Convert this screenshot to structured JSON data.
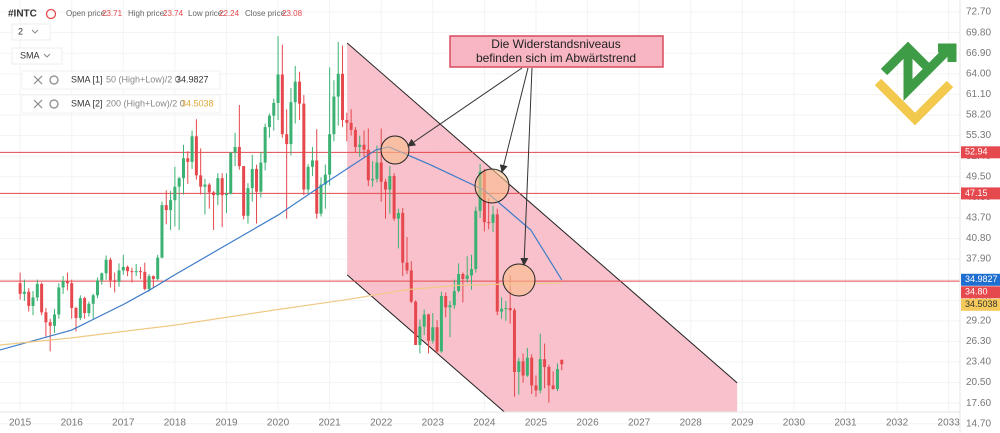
{
  "header": {
    "symbol": "#INTC",
    "open": {
      "label": "Open price:",
      "value": 23.71
    },
    "high": {
      "label": "High price:",
      "value": 23.74
    },
    "low": {
      "label": "Low price:",
      "value": 22.24
    },
    "close": {
      "label": "Close price:",
      "value": 23.08
    }
  },
  "toolbar": {
    "interval": "2",
    "indicator": "SMA"
  },
  "chart_data": {
    "type": "candlestick",
    "up_color": "#3bb273",
    "down_color": "#e5484d",
    "grid": true,
    "xlim": [
      2014.61,
      2033.22
    ],
    "xticks": [
      2015,
      2016,
      2017,
      2018,
      2019,
      2020,
      2021,
      2022,
      2023,
      2024,
      2025,
      2026,
      2027,
      2028,
      2029,
      2030,
      2031,
      2032,
      2033
    ],
    "ylim": [
      13.4,
      74.4
    ],
    "yticks": [
      {
        "value": 72.7,
        "label": "72.70"
      },
      {
        "value": 69.8,
        "label": "69.80"
      },
      {
        "value": 66.9,
        "label": "66.90"
      },
      {
        "value": 64,
        "label": "64.00"
      },
      {
        "value": 61.1,
        "label": "61.10"
      },
      {
        "value": 58.2,
        "label": "58.20"
      },
      {
        "value": 55.3,
        "label": "55.30"
      },
      {
        "value": 52.4,
        "label": "52.40"
      },
      {
        "value": 49.5,
        "label": "49.50"
      },
      {
        "value": 46.6,
        "label": "46.60"
      },
      {
        "value": 43.7,
        "label": "43.70"
      },
      {
        "value": 40.8,
        "label": "40.80"
      },
      {
        "value": 37.9,
        "label": "37.90"
      },
      {
        "value": 35,
        "label": "35.00"
      },
      {
        "value": 32.1,
        "label": "32.10"
      },
      {
        "value": 29.2,
        "label": "29.20"
      },
      {
        "value": 26.3,
        "label": "26.30"
      },
      {
        "value": 23.4,
        "label": "23.40"
      },
      {
        "value": 20.5,
        "label": "20.50"
      },
      {
        "value": 17.6,
        "label": "17.60"
      },
      {
        "value": 14.7,
        "label": "14.70"
      }
    ],
    "x": [
      2015,
      2015.083,
      2015.167,
      2015.25,
      2015.333,
      2015.417,
      2015.5,
      2015.583,
      2015.667,
      2015.75,
      2015.833,
      2015.917,
      2016,
      2016.083,
      2016.167,
      2016.25,
      2016.333,
      2016.417,
      2016.5,
      2016.583,
      2016.667,
      2016.75,
      2016.833,
      2016.917,
      2017,
      2017.083,
      2017.167,
      2017.25,
      2017.333,
      2017.417,
      2017.5,
      2017.583,
      2017.667,
      2017.75,
      2017.833,
      2017.917,
      2018,
      2018.083,
      2018.167,
      2018.25,
      2018.333,
      2018.417,
      2018.5,
      2018.583,
      2018.667,
      2018.75,
      2018.833,
      2018.917,
      2019,
      2019.083,
      2019.167,
      2019.25,
      2019.333,
      2019.417,
      2019.5,
      2019.583,
      2019.667,
      2019.75,
      2019.833,
      2019.917,
      2020,
      2020.083,
      2020.167,
      2020.25,
      2020.333,
      2020.417,
      2020.5,
      2020.583,
      2020.667,
      2020.75,
      2020.833,
      2020.917,
      2021,
      2021.083,
      2021.167,
      2021.25,
      2021.333,
      2021.417,
      2021.5,
      2021.583,
      2021.667,
      2021.75,
      2021.833,
      2021.917,
      2022,
      2022.083,
      2022.167,
      2022.25,
      2022.333,
      2022.417,
      2022.5,
      2022.583,
      2022.667,
      2022.75,
      2022.833,
      2022.917,
      2023,
      2023.083,
      2023.167,
      2023.25,
      2023.333,
      2023.417,
      2023.5,
      2023.583,
      2023.667,
      2023.75,
      2023.833,
      2023.917,
      2024,
      2024.083,
      2024.167,
      2024.25,
      2024.333,
      2024.417,
      2024.5,
      2024.583,
      2024.667,
      2024.75,
      2024.833,
      2024.917,
      2025,
      2025.083,
      2025.167,
      2025.25,
      2025.333,
      2025.417,
      2025.5
    ],
    "ohlc": [
      [
        34.5,
        36.0,
        32.2,
        33.0
      ],
      [
        33.0,
        35.0,
        32.0,
        33.3
      ],
      [
        33.3,
        33.8,
        30.5,
        31.3
      ],
      [
        31.3,
        33.4,
        30.0,
        32.5
      ],
      [
        32.5,
        35.0,
        32.0,
        34.4
      ],
      [
        34.4,
        34.6,
        30.0,
        30.4
      ],
      [
        30.4,
        31.0,
        27.0,
        29.0
      ],
      [
        29.0,
        29.5,
        24.9,
        28.5
      ],
      [
        28.5,
        30.9,
        27.5,
        30.1
      ],
      [
        30.1,
        34.5,
        29.5,
        33.9
      ],
      [
        33.9,
        35.5,
        33.0,
        34.8
      ],
      [
        34.8,
        36.0,
        33.5,
        34.5
      ],
      [
        34.5,
        35.0,
        29.5,
        31.0
      ],
      [
        31.0,
        31.2,
        27.7,
        29.6
      ],
      [
        29.6,
        32.8,
        29.3,
        32.4
      ],
      [
        32.4,
        32.6,
        29.5,
        30.3
      ],
      [
        30.3,
        31.9,
        29.8,
        31.6
      ],
      [
        31.6,
        33.0,
        29.5,
        32.8
      ],
      [
        32.8,
        35.3,
        32.4,
        34.9
      ],
      [
        34.9,
        36.0,
        34.3,
        35.9
      ],
      [
        35.9,
        38.4,
        35.0,
        37.8
      ],
      [
        37.8,
        38.1,
        33.9,
        34.9
      ],
      [
        34.9,
        36.0,
        33.2,
        34.7
      ],
      [
        34.7,
        37.3,
        34.0,
        36.3
      ],
      [
        36.3,
        38.5,
        35.7,
        36.8
      ],
      [
        36.8,
        37.0,
        35.5,
        36.2
      ],
      [
        36.2,
        36.7,
        34.6,
        36.1
      ],
      [
        36.1,
        37.2,
        35.5,
        36.2
      ],
      [
        36.2,
        36.8,
        35.1,
        36.1
      ],
      [
        36.1,
        37.4,
        33.5,
        33.7
      ],
      [
        33.7,
        35.8,
        33.3,
        35.5
      ],
      [
        35.5,
        35.6,
        33.8,
        35.1
      ],
      [
        35.1,
        38.5,
        34.9,
        38.1
      ],
      [
        38.1,
        46.0,
        38.0,
        45.5
      ],
      [
        45.5,
        47.6,
        42.8,
        44.8
      ],
      [
        44.8,
        47.5,
        42.0,
        46.2
      ],
      [
        46.2,
        50.9,
        42.5,
        48.1
      ],
      [
        48.1,
        49.5,
        42.0,
        49.3
      ],
      [
        49.3,
        54.0,
        47.0,
        52.1
      ],
      [
        52.1,
        53.1,
        48.5,
        51.6
      ],
      [
        51.6,
        56.0,
        50.6,
        55.2
      ],
      [
        55.2,
        57.6,
        49.1,
        49.7
      ],
      [
        49.7,
        53.5,
        47.0,
        48.1
      ],
      [
        48.1,
        49.2,
        44.2,
        48.4
      ],
      [
        48.4,
        48.6,
        45.0,
        47.3
      ],
      [
        47.3,
        47.5,
        42.0,
        46.9
      ],
      [
        46.9,
        50.0,
        45.5,
        49.3
      ],
      [
        49.3,
        50.0,
        42.4,
        46.9
      ],
      [
        46.9,
        50.0,
        44.4,
        47.1
      ],
      [
        47.1,
        53.0,
        47.0,
        52.9
      ],
      [
        52.9,
        55.7,
        51.0,
        53.7
      ],
      [
        53.7,
        59.6,
        50.5,
        51.0
      ],
      [
        51.0,
        51.0,
        43.5,
        44.0
      ],
      [
        44.0,
        48.6,
        42.9,
        47.9
      ],
      [
        47.9,
        52.6,
        46.0,
        50.6
      ],
      [
        50.6,
        51.2,
        42.9,
        47.4
      ],
      [
        47.4,
        53.0,
        46.6,
        51.5
      ],
      [
        51.5,
        57.0,
        50.4,
        56.5
      ],
      [
        56.5,
        58.4,
        55.0,
        58.1
      ],
      [
        58.1,
        60.5,
        56.0,
        59.9
      ],
      [
        59.9,
        69.3,
        57.5,
        63.9
      ],
      [
        63.9,
        68.1,
        55.0,
        55.5
      ],
      [
        55.5,
        59.0,
        43.6,
        54.1
      ],
      [
        54.1,
        62.0,
        52.5,
        60.0
      ],
      [
        60.0,
        65.1,
        57.0,
        62.9
      ],
      [
        62.9,
        64.3,
        57.5,
        59.8
      ],
      [
        59.8,
        61.0,
        46.9,
        47.7
      ],
      [
        47.7,
        51.3,
        47.1,
        50.9
      ],
      [
        50.9,
        53.7,
        49.6,
        51.8
      ],
      [
        51.8,
        56.2,
        43.6,
        44.3
      ],
      [
        44.3,
        49.4,
        43.9,
        48.4
      ],
      [
        48.4,
        51.2,
        45.0,
        49.8
      ],
      [
        49.8,
        64.9,
        48.3,
        55.5
      ],
      [
        55.5,
        63.1,
        54.5,
        60.8
      ],
      [
        60.8,
        68.5,
        56.7,
        64.0
      ],
      [
        64.0,
        68.0,
        56.5,
        57.5
      ],
      [
        57.5,
        58.5,
        54.5,
        57.1
      ],
      [
        57.1,
        59.0,
        55.3,
        56.1
      ],
      [
        56.1,
        56.5,
        52.9,
        53.7
      ],
      [
        53.7,
        55.3,
        52.3,
        54.0
      ],
      [
        54.0,
        56.0,
        52.2,
        53.3
      ],
      [
        53.3,
        56.3,
        48.2,
        49.0
      ],
      [
        49.0,
        51.7,
        48.1,
        49.2
      ],
      [
        49.2,
        53.9,
        48.7,
        51.5
      ],
      [
        51.5,
        56.3,
        46.0,
        48.8
      ],
      [
        48.8,
        49.2,
        43.6,
        47.7
      ],
      [
        47.7,
        51.0,
        44.3,
        49.6
      ],
      [
        49.6,
        50.0,
        43.3,
        43.6
      ],
      [
        43.6,
        45.0,
        39.4,
        44.4
      ],
      [
        44.4,
        45.1,
        35.5,
        37.4
      ],
      [
        37.4,
        41.0,
        35.8,
        36.3
      ],
      [
        36.3,
        37.6,
        31.7,
        31.9
      ],
      [
        31.9,
        32.1,
        25.8,
        25.8
      ],
      [
        25.8,
        29.4,
        24.6,
        28.4
      ],
      [
        28.4,
        30.8,
        27.2,
        30.1
      ],
      [
        30.1,
        30.2,
        24.6,
        26.4
      ],
      [
        26.4,
        30.3,
        26.0,
        28.3
      ],
      [
        28.3,
        29.3,
        24.6,
        24.9
      ],
      [
        24.9,
        33.3,
        24.7,
        32.7
      ],
      [
        32.7,
        33.2,
        29.7,
        31.1
      ],
      [
        31.1,
        32.0,
        26.9,
        31.4
      ],
      [
        31.4,
        35.0,
        30.9,
        33.4
      ],
      [
        33.4,
        37.3,
        33.2,
        35.8
      ],
      [
        35.8,
        36.0,
        31.8,
        35.1
      ],
      [
        35.1,
        38.3,
        34.6,
        35.6
      ],
      [
        35.6,
        38.5,
        33.6,
        36.5
      ],
      [
        36.5,
        45.3,
        36.0,
        44.7
      ],
      [
        44.7,
        51.3,
        43.7,
        50.2
      ],
      [
        50.2,
        50.6,
        41.8,
        43.1
      ],
      [
        43.1,
        46.5,
        42.1,
        43.0
      ],
      [
        43.0,
        45.4,
        41.7,
        44.2
      ],
      [
        44.2,
        45.0,
        30.0,
        30.5
      ],
      [
        30.5,
        32.5,
        29.5,
        30.9
      ],
      [
        30.9,
        32.0,
        29.2,
        31.0
      ],
      [
        31.0,
        35.6,
        28.8,
        30.7
      ],
      [
        30.7,
        31.0,
        18.5,
        22.0
      ],
      [
        22.0,
        24.0,
        18.8,
        23.5
      ],
      [
        23.5,
        24.6,
        20.5,
        21.5
      ],
      [
        21.5,
        25.4,
        21.3,
        24.0
      ],
      [
        24.0,
        24.5,
        18.9,
        20.1
      ],
      [
        20.1,
        21.5,
        18.5,
        19.4
      ],
      [
        19.4,
        27.4,
        19.0,
        23.8
      ],
      [
        23.8,
        26.0,
        19.7,
        22.7
      ],
      [
        22.7,
        23.0,
        17.7,
        20.1
      ],
      [
        20.1,
        22.1,
        19.5,
        19.6
      ],
      [
        19.6,
        23.2,
        19.3,
        22.4
      ],
      [
        23.71,
        23.74,
        22.24,
        23.08
      ]
    ],
    "series": [
      {
        "name": "SMA [1]",
        "params": "50 (High+Low)/2 0",
        "last": 34.9827,
        "color": "#3d7cc9",
        "label_color": "#1f6fd1",
        "x": [
          2014.61,
          2016,
          2017,
          2017.5,
          2018,
          2019,
          2020,
          2021,
          2021.9,
          2022.15,
          2022.95,
          2024,
          2024.9,
          2025.5
        ],
        "values": [
          25.1,
          27.9,
          31.5,
          33.5,
          35.7,
          39.9,
          44.1,
          49.0,
          53.3,
          53.7,
          51.2,
          47.6,
          42.0,
          34.9827
        ]
      },
      {
        "name": "SMA [2]",
        "params": "200 (High+Low)/2 0",
        "last": 34.5038,
        "color": "#f0c987",
        "label_color": "#f5c95a",
        "x": [
          2014.61,
          2016,
          2018,
          2020,
          2021.34,
          2022.5,
          2023.5,
          2024.5,
          2025.5
        ],
        "values": [
          25.8,
          26.8,
          28.6,
          30.8,
          32.2,
          33.6,
          34.2,
          34.4,
          34.5038
        ]
      }
    ],
    "levels": [
      {
        "value": 52.94,
        "color": "#e5484d"
      },
      {
        "value": 47.15,
        "color": "#e5484d"
      },
      {
        "value": 34.8,
        "label": "34.80",
        "color": "#e5484d"
      }
    ],
    "channel": {
      "fill": "#f7b6c2",
      "points": [
        [
          2021.34,
          68.34
        ],
        [
          2028.9,
          20.47
        ],
        [
          2028.9,
          15.97
        ],
        [
          2024.45,
          15.97
        ],
        [
          2021.34,
          35.67
        ]
      ]
    },
    "annotation": [
      "Die Widerstandsniveaus",
      "befinden sich im Abwärtstrend"
    ]
  }
}
